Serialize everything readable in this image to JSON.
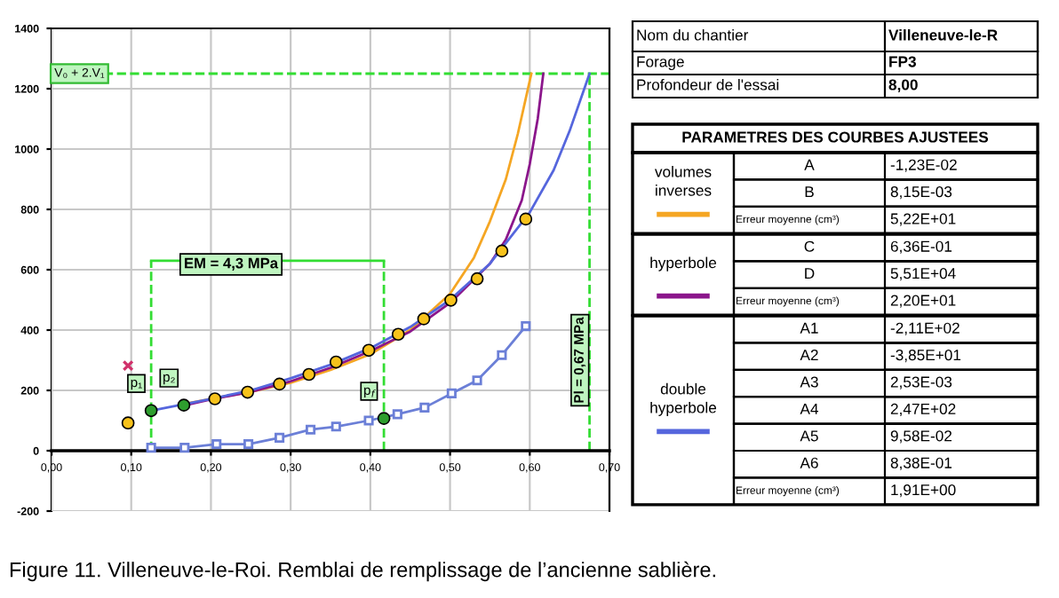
{
  "chart_data": [
    {
      "type": "line",
      "xlim": [
        0,
        0.7
      ],
      "ylim": [
        -200,
        1400
      ],
      "xticks": [
        {
          "value": 0,
          "label": "0,00"
        },
        {
          "value": 0.1,
          "label": "0,10"
        },
        {
          "value": 0.2,
          "label": "0,20"
        },
        {
          "value": 0.3,
          "label": "0,30"
        },
        {
          "value": 0.4,
          "label": "0,40"
        },
        {
          "value": 0.5,
          "label": "0,50"
        },
        {
          "value": 0.6,
          "label": "0,60"
        },
        {
          "value": 0.7,
          "label": "0,70"
        }
      ],
      "yticks": [
        -200,
        0,
        200,
        400,
        600,
        800,
        1000,
        1200,
        1400
      ],
      "grid": true,
      "series": [
        {
          "type": "line",
          "name": "volumes inverses",
          "color": "#f5a623",
          "x": [
            0.166,
            0.2,
            0.25,
            0.3,
            0.35,
            0.4,
            0.45,
            0.5,
            0.53,
            0.55,
            0.57,
            0.585,
            0.602
          ],
          "values": [
            155,
            172,
            195,
            225,
            268,
            320,
            400,
            520,
            640,
            760,
            900,
            1050,
            1250
          ]
        },
        {
          "type": "line",
          "name": "hyperbole",
          "color": "#8b168b",
          "x": [
            0.166,
            0.2,
            0.25,
            0.3,
            0.35,
            0.4,
            0.45,
            0.5,
            0.55,
            0.57,
            0.59,
            0.6,
            0.61,
            0.617
          ],
          "values": [
            150,
            170,
            195,
            230,
            275,
            330,
            395,
            490,
            620,
            700,
            830,
            950,
            1100,
            1250
          ]
        },
        {
          "type": "line",
          "name": "double hyperbole",
          "color": "#5566dd",
          "x": [
            0.125,
            0.2,
            0.25,
            0.3,
            0.35,
            0.4,
            0.45,
            0.5,
            0.55,
            0.6,
            0.63,
            0.65,
            0.675
          ],
          "values": [
            133,
            172,
            200,
            240,
            285,
            340,
            410,
            500,
            620,
            790,
            930,
            1060,
            1250
          ]
        },
        {
          "type": "line",
          "color": "#6b7fd7",
          "marker": "square",
          "x": [
            0.125,
            0.167,
            0.207,
            0.247,
            0.286,
            0.325,
            0.357,
            0.398,
            0.434,
            0.468,
            0.502,
            0.534,
            0.565,
            0.595
          ],
          "values": [
            10,
            10,
            22,
            22,
            43,
            70,
            80,
            100,
            121,
            143,
            190,
            233,
            317,
            413
          ]
        },
        {
          "type": "scatter",
          "color": "#f7c21b",
          "marker": "circle",
          "x": [
            0.096,
            0.205,
            0.246,
            0.286,
            0.323,
            0.357,
            0.398,
            0.435,
            0.467,
            0.501,
            0.534,
            0.565,
            0.595
          ],
          "values": [
            92,
            172,
            194,
            221,
            253,
            294,
            333,
            386,
            437,
            499,
            570,
            662,
            768
          ]
        },
        {
          "type": "scatter",
          "color": "#2e9e2e",
          "marker": "circle",
          "x": [
            0.125,
            0.166,
            0.417
          ],
          "values": [
            133,
            151,
            107
          ]
        },
        {
          "type": "scatter",
          "color": "#d0306a",
          "marker": "cross",
          "x": [
            0.096
          ],
          "values": [
            282
          ]
        },
        {
          "color": "#33dd33",
          "x": [
            0.125,
            0.417
          ],
          "values": [
            630,
            630
          ]
        }
      ],
      "ref_lines": [
        {
          "axis": "y",
          "value": 1250,
          "label": "V₀ + 2.V₁",
          "color": "#33dd33",
          "line_style": "dashed"
        },
        {
          "axis": "x",
          "value": 0.675,
          "label": "Pl = 0,67 MPa",
          "color": "#33dd33",
          "line_style": "dashed"
        },
        {
          "axis": "x",
          "value": 0.125,
          "color": "#33dd33",
          "line_style": "dashed"
        },
        {
          "axis": "x",
          "value": 0.417,
          "color": "#33dd33",
          "line_style": "dashed"
        }
      ],
      "annotations": [
        "EM = 4,3 MPa",
        {
          "text": "p₁",
          "x": 0.125,
          "y": 133
        },
        {
          "text": "p₂",
          "x": 0.166,
          "y": 151
        },
        {
          "text": "p$_{f}$",
          "x": 0.417,
          "y": 107
        },
        "Figure 11. Villeneuve-le-Roi. Remblai de remplissage de l’ancienne sablière."
      ]
    },
    {
      "type": "other",
      "annotations": [
        "Nom du chantier",
        "Villeneuve-le-R",
        "Forage",
        "FP3",
        "Profondeur de l'essai",
        "8,00",
        "PARAMETRES DES COURBES AJUSTEES",
        "A",
        "-1,23E-02",
        "B",
        "8,15E-03",
        "Erreur moyenne (cm³)",
        "5,22E+01",
        "C",
        "6,36E-01",
        "D",
        "5,51E+04",
        "Erreur moyenne (cm³)",
        "2,20E+01",
        "A1",
        "-2,11E+02",
        "A2",
        "-3,85E+01",
        "A3",
        "2,53E-03",
        "A4",
        "2,47E+02",
        "A5",
        "9,58E-02",
        "A6",
        "8,38E-01",
        "Erreur moyenne (cm³)",
        "1,91E+00"
      ]
    }
  ]
}
